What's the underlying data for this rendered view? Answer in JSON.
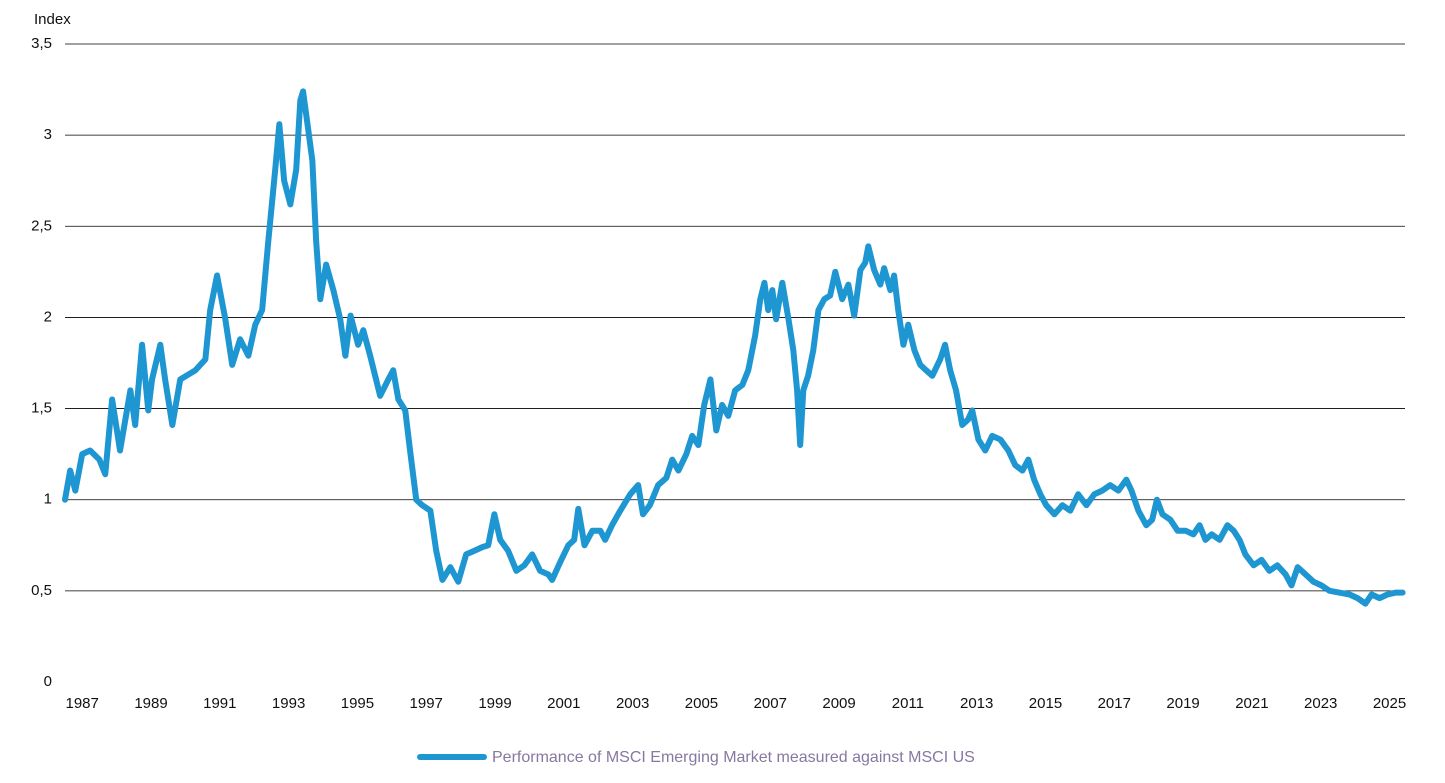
{
  "chart_data": {
    "type": "line",
    "y_axis_label": "Index",
    "xlim": [
      1986.5,
      2025.45
    ],
    "xticks": [
      1987,
      1989,
      1991,
      1993,
      1995,
      1997,
      1999,
      2001,
      2003,
      2005,
      2007,
      2009,
      2011,
      2013,
      2015,
      2017,
      2019,
      2021,
      2023,
      2025
    ],
    "ylim": [
      0,
      3.5
    ],
    "yticks": [
      0,
      {
        "value": 0.5,
        "label": "0,5"
      },
      1,
      {
        "value": 1.5,
        "label": "1,5"
      },
      2,
      {
        "value": 2.5,
        "label": "2,5"
      },
      3,
      {
        "value": 3.5,
        "label": "3,5"
      }
    ],
    "grid": true,
    "legend": "bottom",
    "x": [
      1986.5,
      1986.65,
      1986.8,
      1987.0,
      1987.23,
      1987.5,
      1987.67,
      1987.87,
      1988.1,
      1988.4,
      1988.54,
      1988.74,
      1988.92,
      1989.03,
      1989.27,
      1989.41,
      1989.62,
      1989.85,
      1990.29,
      1990.58,
      1990.72,
      1990.92,
      1991.16,
      1991.36,
      1991.59,
      1991.83,
      1992.03,
      1992.23,
      1992.41,
      1992.61,
      1992.73,
      1992.87,
      1993.05,
      1993.22,
      1993.34,
      1993.42,
      1993.57,
      1993.69,
      1993.8,
      1993.92,
      1994.09,
      1994.3,
      1994.5,
      1994.65,
      1994.8,
      1995.02,
      1995.17,
      1995.37,
      1995.66,
      1995.9,
      1996.04,
      1996.19,
      1996.39,
      1996.53,
      1996.71,
      1996.88,
      1997.12,
      1997.29,
      1997.47,
      1997.7,
      1997.93,
      1998.16,
      1998.4,
      1998.63,
      1998.8,
      1998.98,
      1999.15,
      1999.38,
      1999.62,
      1999.85,
      2000.08,
      2000.31,
      2000.55,
      2000.66,
      2000.9,
      2001.13,
      2001.3,
      2001.42,
      2001.6,
      2001.83,
      2002.06,
      2002.2,
      2002.4,
      2002.64,
      2002.93,
      2003.16,
      2003.3,
      2003.5,
      2003.74,
      2003.98,
      2004.15,
      2004.33,
      2004.56,
      2004.73,
      2004.91,
      2005.08,
      2005.26,
      2005.43,
      2005.6,
      2005.78,
      2005.98,
      2006.19,
      2006.36,
      2006.56,
      2006.71,
      2006.83,
      2006.94,
      2007.06,
      2007.17,
      2007.35,
      2007.53,
      2007.67,
      2007.78,
      2007.87,
      2007.96,
      2008.1,
      2008.25,
      2008.4,
      2008.57,
      2008.74,
      2008.89,
      2009.09,
      2009.27,
      2009.44,
      2009.62,
      2009.76,
      2009.85,
      2010.02,
      2010.2,
      2010.31,
      2010.49,
      2010.6,
      2010.72,
      2010.87,
      2011.01,
      2011.19,
      2011.36,
      2011.53,
      2011.71,
      2011.94,
      2012.08,
      2012.23,
      2012.4,
      2012.58,
      2012.75,
      2012.87,
      2013.05,
      2013.25,
      2013.45,
      2013.69,
      2013.92,
      2014.12,
      2014.33,
      2014.5,
      2014.67,
      2014.85,
      2015.02,
      2015.26,
      2015.49,
      2015.72,
      2015.95,
      2016.19,
      2016.42,
      2016.65,
      2016.88,
      2017.12,
      2017.35,
      2017.5,
      2017.7,
      2017.93,
      2018.1,
      2018.24,
      2018.4,
      2018.63,
      2018.84,
      2019.07,
      2019.3,
      2019.48,
      2019.65,
      2019.83,
      2020.06,
      2020.29,
      2020.47,
      2020.64,
      2020.81,
      2021.05,
      2021.28,
      2021.51,
      2021.74,
      2021.98,
      2022.15,
      2022.33,
      2022.56,
      2022.79,
      2023.02,
      2023.26,
      2023.55,
      2023.84,
      2024.07,
      2024.3,
      2024.48,
      2024.71,
      2024.94,
      2025.17,
      2025.38
    ],
    "series": [
      {
        "name": "Performance of MSCI Emerging Market measured against MSCI US",
        "color": "#1e96d2",
        "values": [
          1.0,
          1.16,
          1.05,
          1.25,
          1.27,
          1.22,
          1.14,
          1.55,
          1.27,
          1.6,
          1.41,
          1.85,
          1.49,
          1.66,
          1.85,
          1.66,
          1.41,
          1.66,
          1.71,
          1.77,
          2.04,
          2.23,
          1.99,
          1.74,
          1.88,
          1.79,
          1.96,
          2.04,
          2.42,
          2.81,
          3.06,
          2.75,
          2.62,
          2.81,
          3.19,
          3.24,
          3.03,
          2.86,
          2.42,
          2.1,
          2.29,
          2.15,
          1.99,
          1.79,
          2.01,
          1.85,
          1.93,
          1.79,
          1.57,
          1.66,
          1.71,
          1.55,
          1.49,
          1.27,
          1.0,
          0.97,
          0.94,
          0.72,
          0.56,
          0.63,
          0.55,
          0.7,
          0.72,
          0.74,
          0.75,
          0.92,
          0.78,
          0.72,
          0.61,
          0.64,
          0.7,
          0.61,
          0.59,
          0.56,
          0.66,
          0.75,
          0.78,
          0.95,
          0.75,
          0.83,
          0.83,
          0.78,
          0.86,
          0.94,
          1.03,
          1.08,
          0.92,
          0.97,
          1.08,
          1.12,
          1.22,
          1.16,
          1.25,
          1.35,
          1.3,
          1.52,
          1.66,
          1.38,
          1.52,
          1.46,
          1.6,
          1.63,
          1.71,
          1.9,
          2.1,
          2.19,
          2.04,
          2.15,
          1.99,
          2.19,
          1.99,
          1.82,
          1.6,
          1.3,
          1.6,
          1.68,
          1.82,
          2.04,
          2.1,
          2.12,
          2.25,
          2.1,
          2.18,
          2.01,
          2.26,
          2.3,
          2.39,
          2.26,
          2.18,
          2.27,
          2.15,
          2.23,
          2.04,
          1.85,
          1.96,
          1.82,
          1.74,
          1.71,
          1.68,
          1.77,
          1.85,
          1.71,
          1.6,
          1.41,
          1.44,
          1.49,
          1.33,
          1.27,
          1.35,
          1.33,
          1.27,
          1.19,
          1.16,
          1.22,
          1.11,
          1.03,
          0.97,
          0.92,
          0.97,
          0.94,
          1.03,
          0.97,
          1.03,
          1.05,
          1.08,
          1.05,
          1.11,
          1.05,
          0.94,
          0.86,
          0.89,
          1.0,
          0.92,
          0.89,
          0.83,
          0.83,
          0.81,
          0.86,
          0.78,
          0.81,
          0.78,
          0.86,
          0.83,
          0.78,
          0.7,
          0.64,
          0.67,
          0.61,
          0.64,
          0.59,
          0.53,
          0.63,
          0.59,
          0.55,
          0.53,
          0.5,
          0.49,
          0.48,
          0.46,
          0.43,
          0.48,
          0.46,
          0.48,
          0.49,
          0.49
        ]
      }
    ]
  }
}
